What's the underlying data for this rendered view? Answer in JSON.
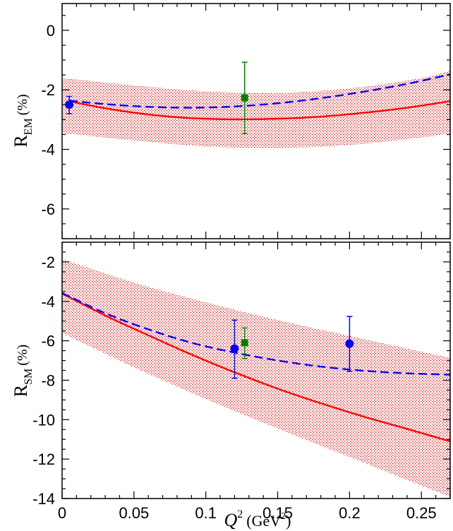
{
  "chart_data": [
    {
      "type": "line",
      "panel": "top",
      "ylabel_main": "R",
      "ylabel_sub": "EM",
      "ylabel_unit": "(%)",
      "xlim": [
        0,
        0.27
      ],
      "ylim": [
        -7,
        0.9
      ],
      "yticks": [
        0,
        -2,
        -4,
        -6
      ],
      "y_minor_step": 0.5,
      "colors": {
        "solid": "#ff0000",
        "dashed": "#0000ff",
        "band": "#ff0000",
        "green": "#008000",
        "blue": "#0000ff"
      },
      "band": {
        "x": [
          0,
          0.05,
          0.1,
          0.15,
          0.2,
          0.25,
          0.27
        ],
        "lower": [
          -3.45,
          -3.7,
          -3.9,
          -3.95,
          -3.85,
          -3.6,
          -3.45
        ],
        "upper": [
          -1.6,
          -1.85,
          -2.05,
          -2.1,
          -1.95,
          -1.6,
          -1.35
        ]
      },
      "series": [
        {
          "name": "solid",
          "style": "solid",
          "x": [
            0.005,
            0.03,
            0.06,
            0.09,
            0.12,
            0.15,
            0.18,
            0.21,
            0.24,
            0.27
          ],
          "y": [
            -2.38,
            -2.62,
            -2.83,
            -2.95,
            -2.99,
            -2.97,
            -2.9,
            -2.77,
            -2.6,
            -2.38
          ]
        },
        {
          "name": "dashed",
          "style": "dashed",
          "x": [
            0.005,
            0.03,
            0.06,
            0.09,
            0.12,
            0.15,
            0.18,
            0.21,
            0.24,
            0.27
          ],
          "y": [
            -2.36,
            -2.48,
            -2.57,
            -2.6,
            -2.56,
            -2.45,
            -2.28,
            -2.06,
            -1.8,
            -1.48
          ]
        }
      ],
      "points": [
        {
          "name": "blue-circle",
          "shape": "circle",
          "color": "blue",
          "x": 0.005,
          "y": -2.5,
          "err_low": 0.3,
          "err_high": 0.28
        },
        {
          "name": "green-square",
          "shape": "square",
          "color": "green",
          "x": 0.127,
          "y": -2.27,
          "err_low": 1.2,
          "err_high": 1.2
        }
      ]
    },
    {
      "type": "line",
      "panel": "bottom",
      "ylabel_main": "R",
      "ylabel_sub": "SM",
      "ylabel_unit": "(%)",
      "xlabel_main": "Q",
      "xlabel_sup": "2",
      "xlabel_unit_pre": "(GeV",
      "xlabel_unit_sup": "2",
      "xlabel_unit_post": ")",
      "xlim": [
        0,
        0.27
      ],
      "ylim": [
        -14,
        -1
      ],
      "xticks": [
        "0",
        "0.05",
        "0.1",
        "0.15",
        "0.2",
        "0.25"
      ],
      "xtick_values": [
        0,
        0.05,
        0.1,
        0.15,
        0.2,
        0.25
      ],
      "x_minor_step": 0.01,
      "yticks": [
        -2,
        -4,
        -6,
        -8,
        -10,
        -12,
        -14
      ],
      "y_minor_step": 0.5,
      "band": {
        "x": [
          0,
          0.05,
          0.1,
          0.15,
          0.2,
          0.25,
          0.27
        ],
        "lower": [
          -5.6,
          -7.35,
          -8.95,
          -10.45,
          -11.9,
          -13.35,
          -13.9
        ],
        "upper": [
          -1.85,
          -3.05,
          -4.05,
          -4.95,
          -5.75,
          -6.55,
          -6.85
        ]
      },
      "series": [
        {
          "name": "solid",
          "style": "solid",
          "x": [
            0,
            0.03,
            0.06,
            0.09,
            0.12,
            0.15,
            0.18,
            0.21,
            0.24,
            0.27
          ],
          "y": [
            -3.6,
            -4.72,
            -5.72,
            -6.7,
            -7.6,
            -8.43,
            -9.17,
            -9.85,
            -10.47,
            -11.1
          ]
        },
        {
          "name": "dashed",
          "style": "dashed",
          "x": [
            0,
            0.03,
            0.06,
            0.09,
            0.12,
            0.15,
            0.18,
            0.21,
            0.24,
            0.27
          ],
          "y": [
            -3.58,
            -4.6,
            -5.42,
            -6.1,
            -6.6,
            -7.0,
            -7.31,
            -7.52,
            -7.65,
            -7.72
          ]
        }
      ],
      "points": [
        {
          "name": "blue-circle-1",
          "shape": "circle",
          "color": "blue",
          "x": 0.12,
          "y": -6.4,
          "err_low": 1.5,
          "err_high": 1.45
        },
        {
          "name": "green-square",
          "shape": "square",
          "color": "green",
          "x": 0.127,
          "y": -6.1,
          "err_low": 0.8,
          "err_high": 0.75
        },
        {
          "name": "blue-circle-2",
          "shape": "circle",
          "color": "blue",
          "x": 0.2,
          "y": -6.15,
          "err_low": 1.4,
          "err_high": 1.38
        }
      ]
    }
  ]
}
